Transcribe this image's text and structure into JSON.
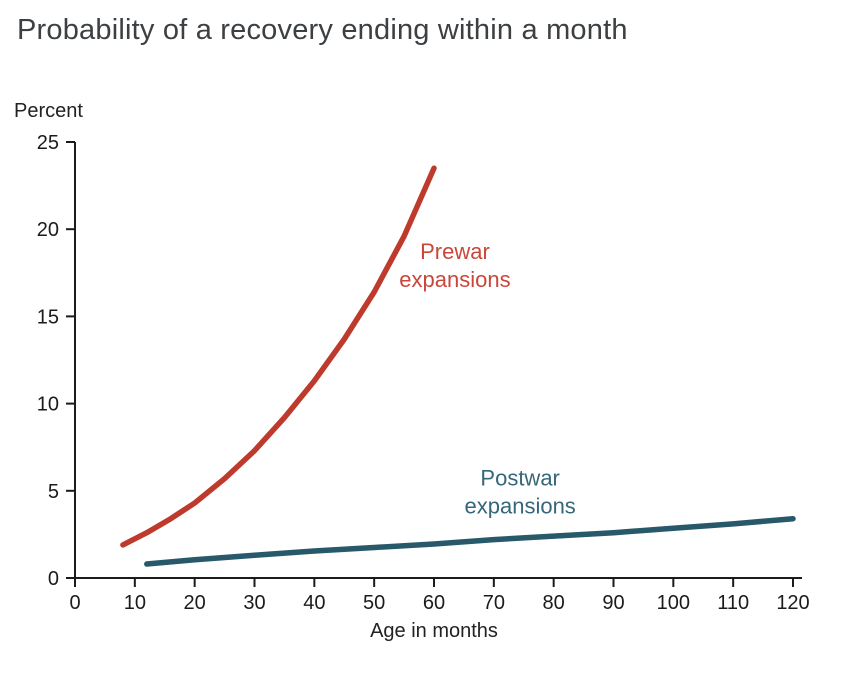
{
  "title": "Probability of a recovery ending within a month",
  "chart_data": {
    "type": "line",
    "title": "Probability of a recovery ending within a month",
    "xlabel": "Age in months",
    "ylabel": "Percent",
    "xlim": [
      0,
      120
    ],
    "ylim": [
      0,
      25
    ],
    "x_ticks": [
      0,
      10,
      20,
      30,
      40,
      50,
      60,
      70,
      80,
      90,
      100,
      110,
      120
    ],
    "y_ticks": [
      0,
      5,
      10,
      15,
      20,
      25
    ],
    "grid": false,
    "legend": "inline-annotations",
    "series": [
      {
        "name": "Prewar expansions",
        "color": "#bd3a2c",
        "label_color": "#c9473a",
        "label_lines": [
          "Prewar",
          "expansions"
        ],
        "label_anchor": {
          "x": 63.5,
          "y": 18.3
        },
        "x": [
          8,
          12,
          16,
          20,
          25,
          30,
          35,
          40,
          45,
          50,
          55,
          60
        ],
        "y": [
          1.9,
          2.6,
          3.4,
          4.3,
          5.7,
          7.3,
          9.2,
          11.3,
          13.7,
          16.4,
          19.6,
          23.5
        ]
      },
      {
        "name": "Postwar expansions",
        "color": "#27596a",
        "label_color": "#35677a",
        "label_lines": [
          "Postwar",
          "expansions"
        ],
        "label_anchor": {
          "x": 74.4,
          "y": 5.3
        },
        "x": [
          12,
          20,
          30,
          40,
          50,
          60,
          70,
          80,
          90,
          100,
          110,
          120
        ],
        "y": [
          0.8,
          1.05,
          1.3,
          1.55,
          1.75,
          1.95,
          2.2,
          2.4,
          2.6,
          2.85,
          3.1,
          3.4
        ]
      }
    ]
  }
}
